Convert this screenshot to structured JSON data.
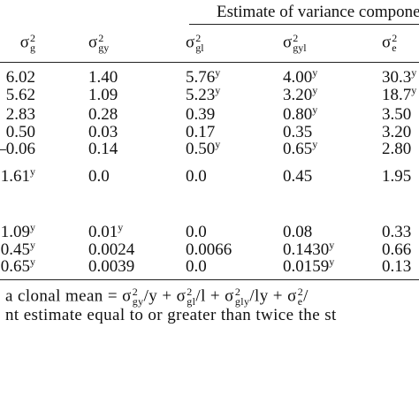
{
  "table": {
    "caption": "Estimate of variance component",
    "header": [
      {
        "base": "σ",
        "sup": "2",
        "sub": "g"
      },
      {
        "base": "σ",
        "sup": "2",
        "sub": "gy"
      },
      {
        "base": "σ",
        "sup": "2",
        "sub": "gl"
      },
      {
        "base": "σ",
        "sup": "2",
        "sub": "gyl"
      },
      {
        "base": "σ",
        "sup": "2",
        "sub": "e"
      }
    ],
    "rows": [
      [
        "6.02",
        "1.40",
        {
          "v": "5.76",
          "sup": "y"
        },
        {
          "v": "4.00",
          "sup": "y"
        },
        {
          "v": "30.3",
          "sup": "y"
        }
      ],
      [
        "5.62",
        "1.09",
        {
          "v": "5.23",
          "sup": "y"
        },
        {
          "v": "3.20",
          "sup": "y"
        },
        {
          "v": "18.7",
          "sup": "y"
        }
      ],
      [
        "2.83",
        "0.28",
        "0.39",
        {
          "v": "0.80",
          "sup": "y"
        },
        "3.50"
      ],
      [
        "0.50",
        "0.03",
        "0.17",
        "0.35",
        "3.20"
      ],
      [
        "–0.06",
        "0.14",
        {
          "v": "0.50",
          "sup": "y"
        },
        {
          "v": "0.65",
          "sup": "y"
        },
        "2.80"
      ],
      [
        {
          "v": "1.61",
          "sup": "y"
        },
        "0.0",
        "0.0",
        "0.45",
        "1.95"
      ],
      [
        {
          "v": "1.09",
          "sup": "y"
        },
        {
          "v": "0.01",
          "sup": "y"
        },
        "0.0",
        "0.08",
        "0.33"
      ],
      [
        {
          "v": "0.45",
          "sup": "y"
        },
        "0.0024",
        "0.0066",
        {
          "v": "0.1430",
          "sup": "y"
        },
        "0.66"
      ],
      [
        {
          "v": "0.65",
          "sup": "y"
        },
        "0.0039",
        "0.0",
        {
          "v": "0.0159",
          "sup": "y"
        },
        "0.13"
      ]
    ]
  },
  "footnotes": [
    [
      "a clonal mean = ",
      {
        "base": "σ",
        "sup": "2",
        "sub": "gy"
      },
      "/y + ",
      {
        "base": "σ",
        "sup": "2",
        "sub": "gl"
      },
      "/l + ",
      {
        "base": "σ",
        "sup": "2",
        "sub": "gly"
      },
      "/ly + ",
      {
        "base": "σ",
        "sup": "2",
        "sub": "e"
      },
      "/"
    ],
    [
      "nt estimate equal to or greater than twice the st"
    ]
  ]
}
